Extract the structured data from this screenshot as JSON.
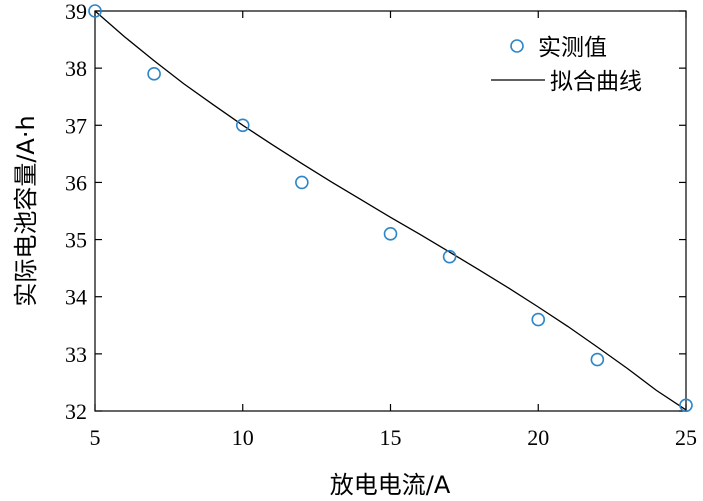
{
  "chart_data": {
    "type": "scatter",
    "xlabel": "放电电流/A",
    "ylabel": "实际电池容量/A·h",
    "xlim": [
      5,
      25
    ],
    "ylim": [
      32,
      39
    ],
    "xticks": [
      "5",
      "10",
      "15",
      "20",
      "25"
    ],
    "yticks": [
      "32",
      "33",
      "34",
      "35",
      "36",
      "37",
      "38",
      "39"
    ],
    "legend_position": "top-right",
    "grid": false,
    "series": [
      {
        "name": "实测值",
        "type": "scatter",
        "marker": "circle-open",
        "color": "#2e86c8",
        "x": [
          5,
          7,
          10,
          12,
          15,
          17,
          20,
          22,
          25
        ],
        "y": [
          39.0,
          37.9,
          37.0,
          36.0,
          35.1,
          34.7,
          33.6,
          32.9,
          32.1
        ]
      },
      {
        "name": "拟合曲线",
        "type": "line",
        "color": "#000000",
        "x": [
          5,
          6,
          7,
          8,
          9,
          10,
          11,
          12,
          13,
          14,
          15,
          16,
          17,
          18,
          19,
          20,
          21,
          22,
          23,
          24,
          25
        ],
        "y": [
          39.0,
          38.55,
          38.13,
          37.73,
          37.36,
          37.0,
          36.66,
          36.33,
          36.01,
          35.7,
          35.39,
          35.09,
          34.78,
          34.47,
          34.15,
          33.82,
          33.48,
          33.12,
          32.75,
          32.36,
          32.02
        ]
      }
    ]
  }
}
